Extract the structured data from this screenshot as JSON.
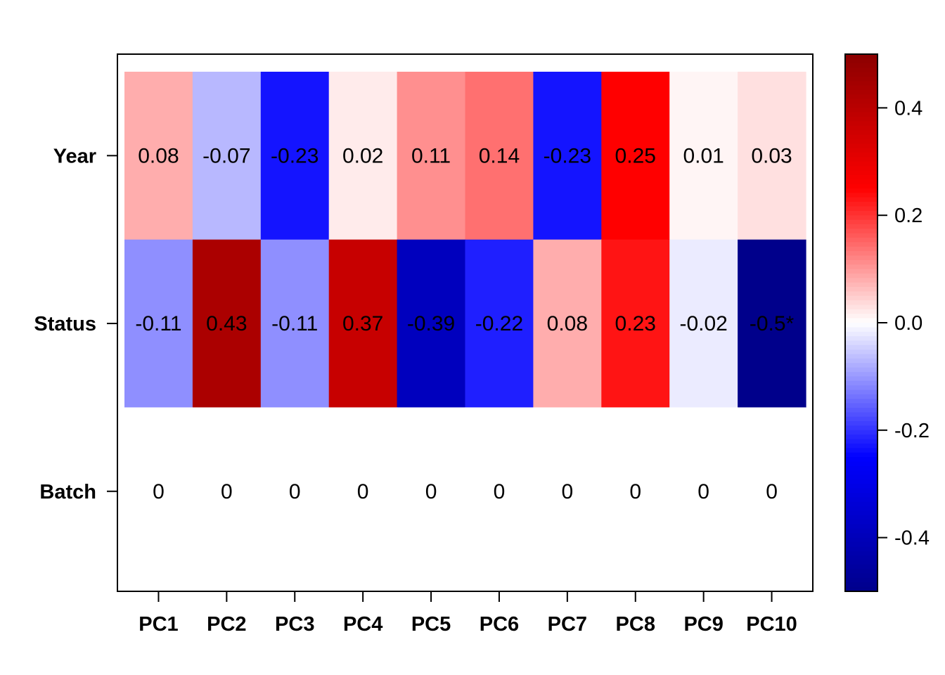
{
  "chart_data": {
    "type": "heatmap",
    "title": "",
    "xlabel": "",
    "ylabel": "",
    "x_categories": [
      "PC1",
      "PC2",
      "PC3",
      "PC4",
      "PC5",
      "PC6",
      "PC7",
      "PC8",
      "PC9",
      "PC10"
    ],
    "y_categories": [
      "Year",
      "Status",
      "Batch"
    ],
    "values": [
      [
        0.08,
        -0.07,
        -0.23,
        0.02,
        0.11,
        0.14,
        -0.23,
        0.25,
        0.01,
        0.03
      ],
      [
        -0.11,
        0.43,
        -0.11,
        0.37,
        -0.39,
        -0.22,
        0.08,
        0.23,
        -0.02,
        -0.5
      ],
      [
        0,
        0,
        0,
        0,
        0,
        0,
        0,
        0,
        0,
        0
      ]
    ],
    "labels": [
      [
        "0.08",
        "-0.07",
        "-0.23",
        "0.02",
        "0.11",
        "0.14",
        "-0.23",
        "0.25",
        "0.01",
        "0.03"
      ],
      [
        "-0.11",
        "0.43",
        "-0.11",
        "0.37",
        "-0.39",
        "-0.22",
        "0.08",
        "0.23",
        "-0.02",
        "-0.5*"
      ],
      [
        "0",
        "0",
        "0",
        "0",
        "0",
        "0",
        "0",
        "0",
        "0",
        "0"
      ]
    ],
    "colorbar": {
      "range": [
        -0.5,
        0.5
      ],
      "ticks": [
        0.4,
        0.2,
        0.0,
        -0.2,
        -0.4
      ],
      "tick_labels": [
        "0.4",
        "0.2",
        "0.0",
        "-0.2",
        "-0.4"
      ],
      "colors": [
        "#00008b",
        "#0000ff",
        "#ffffff",
        "#ff0000",
        "#8b0000"
      ]
    }
  }
}
